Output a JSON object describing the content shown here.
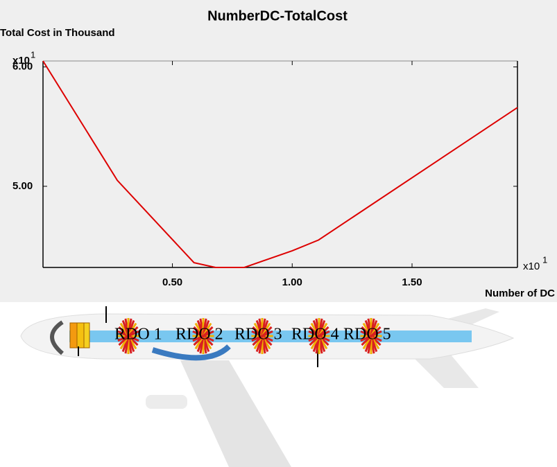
{
  "chart_data": {
    "type": "line",
    "title": "NumberDC-TotalCost",
    "y_label": "Total Cost in Thousand",
    "x_label": "Number of DC",
    "x_multiplier": "x10",
    "x_exponent": "1",
    "y_multiplier": "x10",
    "y_exponent": "1",
    "x": [
      -0.04,
      0.27,
      0.59,
      0.68,
      0.8,
      1.0,
      1.11,
      1.94
    ],
    "series": [
      {
        "color": "#dd0000",
        "values": [
          6.05,
          5.05,
          4.36,
          4.32,
          4.32,
          4.46,
          4.55,
          5.66
        ]
      }
    ],
    "xlim": [
      -0.04,
      1.94
    ],
    "ylim": [
      4.32,
      6.05
    ],
    "xticks": [
      {
        "value": 0.5,
        "label": "0.50"
      },
      {
        "value": 1.0,
        "label": "1.00"
      },
      {
        "value": 1.5,
        "label": "1.50"
      }
    ],
    "yticks": [
      {
        "value": 5.0,
        "label": "5.00"
      },
      {
        "value": 6.0,
        "label": "6.00"
      }
    ]
  },
  "diagram": {
    "labels": [
      "RDO 1",
      "RDO 2",
      "RDO 3",
      "RDO 4",
      "RDO 5"
    ]
  }
}
